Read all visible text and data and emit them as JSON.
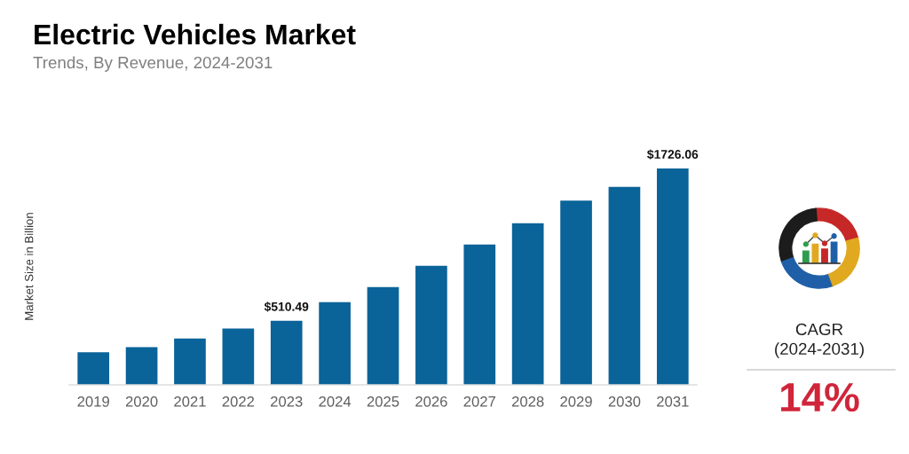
{
  "chart_data": {
    "type": "bar",
    "title": "Electric Vehicles Market",
    "subtitle": "Trends, By Revenue, 2024-2031",
    "ylabel": "Market Size in Billion",
    "categories": [
      "2019",
      "2020",
      "2021",
      "2022",
      "2023",
      "2024",
      "2025",
      "2026",
      "2027",
      "2028",
      "2029",
      "2030",
      "2031"
    ],
    "values": [
      260,
      300,
      370,
      450,
      510.49,
      660,
      780,
      950,
      1120,
      1290,
      1470,
      1580,
      1726.06
    ],
    "color": "#0a6399",
    "value_labels": [
      null,
      null,
      null,
      null,
      "$510.49",
      null,
      null,
      null,
      null,
      null,
      null,
      null,
      "$1726.06"
    ],
    "annotations": [
      "CAGR",
      "(2024-2031)",
      "14%"
    ]
  }
}
